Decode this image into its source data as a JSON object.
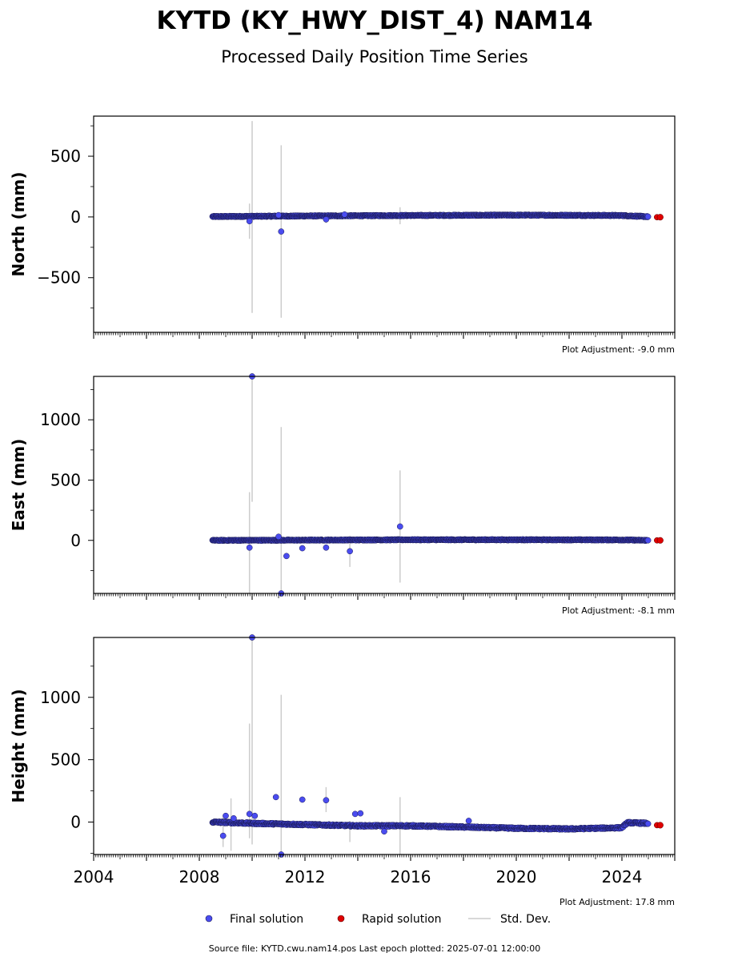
{
  "title": "KYTD (KY_HWY_DIST_4) NAM14",
  "subtitle": "Processed Daily Position Time Series",
  "footer": "Source file: KYTD.cwu.nam14.pos  Last epoch plotted: 2025-07-01 12:00:00",
  "legend": {
    "final": "Final solution",
    "rapid": "Rapid solution",
    "std": "Std. Dev."
  },
  "colors": {
    "final_fill": "#4a4cf0",
    "final_edge": "#1a1a55",
    "rapid_fill": "#e00000",
    "std_line": "#cccccc"
  },
  "chart_data": [
    {
      "type": "scatter",
      "ylabel": "North (mm)",
      "adjustment": "Plot Adjustment: -9.0 mm",
      "xlim": [
        2004.0,
        2026.0
      ],
      "ylim": [
        -950,
        830
      ],
      "yticks": [
        500,
        0,
        -500
      ],
      "ytick_labels": [
        "500",
        "0",
        "−500"
      ],
      "series": [
        {
          "name": "Final solution",
          "baseline": [
            [
              2008.5,
              3
            ],
            [
              2012,
              8
            ],
            [
              2016,
              12
            ],
            [
              2020,
              15
            ],
            [
              2024,
              12
            ],
            [
              2025.0,
              2
            ]
          ],
          "band": 8,
          "outliers": [
            [
              2009.9,
              -35
            ],
            [
              2011.1,
              -120
            ],
            [
              2012.8,
              -20
            ],
            [
              2011.0,
              15
            ],
            [
              2013.5,
              20
            ]
          ]
        },
        {
          "name": "Rapid solution",
          "points": [
            [
              2025.45,
              -2
            ]
          ]
        }
      ],
      "std_bars": [
        [
          2009.9,
          -180,
          110
        ],
        [
          2010.0,
          -790,
          790
        ],
        [
          2011.1,
          -830,
          590
        ],
        [
          2015.6,
          -60,
          80
        ],
        [
          2012.8,
          -50,
          20
        ]
      ]
    },
    {
      "type": "scatter",
      "ylabel": "East (mm)",
      "adjustment": "Plot Adjustment: -8.1 mm",
      "xlim": [
        2004.0,
        2026.0
      ],
      "ylim": [
        -440,
        1360
      ],
      "yticks": [
        1000,
        500,
        0
      ],
      "ytick_labels": [
        "1000",
        "500",
        "0"
      ],
      "series": [
        {
          "name": "Final solution",
          "baseline": [
            [
              2008.5,
              0
            ],
            [
              2012,
              2
            ],
            [
              2016,
              5
            ],
            [
              2020,
              5
            ],
            [
              2024,
              4
            ],
            [
              2025.0,
              0
            ]
          ],
          "band": 7,
          "outliers": [
            [
              2009.9,
              -60
            ],
            [
              2010.0,
              1360
            ],
            [
              2011.0,
              30
            ],
            [
              2011.1,
              -440
            ],
            [
              2011.3,
              -130
            ],
            [
              2011.9,
              -65
            ],
            [
              2012.8,
              -60
            ],
            [
              2013.7,
              -90
            ],
            [
              2015.6,
              115
            ]
          ]
        },
        {
          "name": "Rapid solution",
          "points": [
            [
              2025.45,
              0
            ]
          ]
        }
      ],
      "std_bars": [
        [
          2009.9,
          -440,
          400
        ],
        [
          2010.0,
          320,
          1360
        ],
        [
          2011.1,
          -440,
          940
        ],
        [
          2013.7,
          -220,
          40
        ],
        [
          2015.6,
          -350,
          580
        ]
      ]
    },
    {
      "type": "scatter",
      "ylabel": "Height (mm)",
      "adjustment": "Plot Adjustment: 17.8 mm",
      "xlim": [
        2004.0,
        2026.0
      ],
      "ylim": [
        -260,
        1480
      ],
      "yticks": [
        1000,
        500,
        0
      ],
      "ytick_labels": [
        "1000",
        "500",
        "0"
      ],
      "xticks": [
        2004,
        2008,
        2012,
        2016,
        2020,
        2024
      ],
      "xtick_labels": [
        "2004",
        "2008",
        "2012",
        "2016",
        "2020",
        "2024"
      ],
      "series": [
        {
          "name": "Final solution",
          "baseline": [
            [
              2008.5,
              0
            ],
            [
              2010,
              -10
            ],
            [
              2012,
              -20
            ],
            [
              2014,
              -30
            ],
            [
              2016,
              -30
            ],
            [
              2018,
              -40
            ],
            [
              2020,
              -50
            ],
            [
              2022,
              -55
            ],
            [
              2024,
              -45
            ],
            [
              2024.2,
              -5
            ],
            [
              2025.0,
              -10
            ]
          ],
          "band": 12,
          "outliers": [
            [
              2008.9,
              -110
            ],
            [
              2009.0,
              50
            ],
            [
              2009.3,
              30
            ],
            [
              2009.9,
              65
            ],
            [
              2010.0,
              1480
            ],
            [
              2010.1,
              50
            ],
            [
              2010.9,
              200
            ],
            [
              2011.1,
              -260
            ],
            [
              2011.9,
              180
            ],
            [
              2012.8,
              175
            ],
            [
              2013.9,
              65
            ],
            [
              2014.1,
              70
            ],
            [
              2015.0,
              -75
            ],
            [
              2018.2,
              10
            ]
          ]
        },
        {
          "name": "Rapid solution",
          "points": [
            [
              2025.45,
              -25
            ]
          ]
        }
      ],
      "std_bars": [
        [
          2008.9,
          -200,
          40
        ],
        [
          2009.2,
          -230,
          190
        ],
        [
          2009.9,
          -130,
          790
        ],
        [
          2010.0,
          -180,
          1480
        ],
        [
          2011.1,
          -260,
          1020
        ],
        [
          2012.8,
          80,
          280
        ],
        [
          2013.7,
          -160,
          10
        ],
        [
          2015.6,
          -260,
          200
        ]
      ]
    }
  ]
}
